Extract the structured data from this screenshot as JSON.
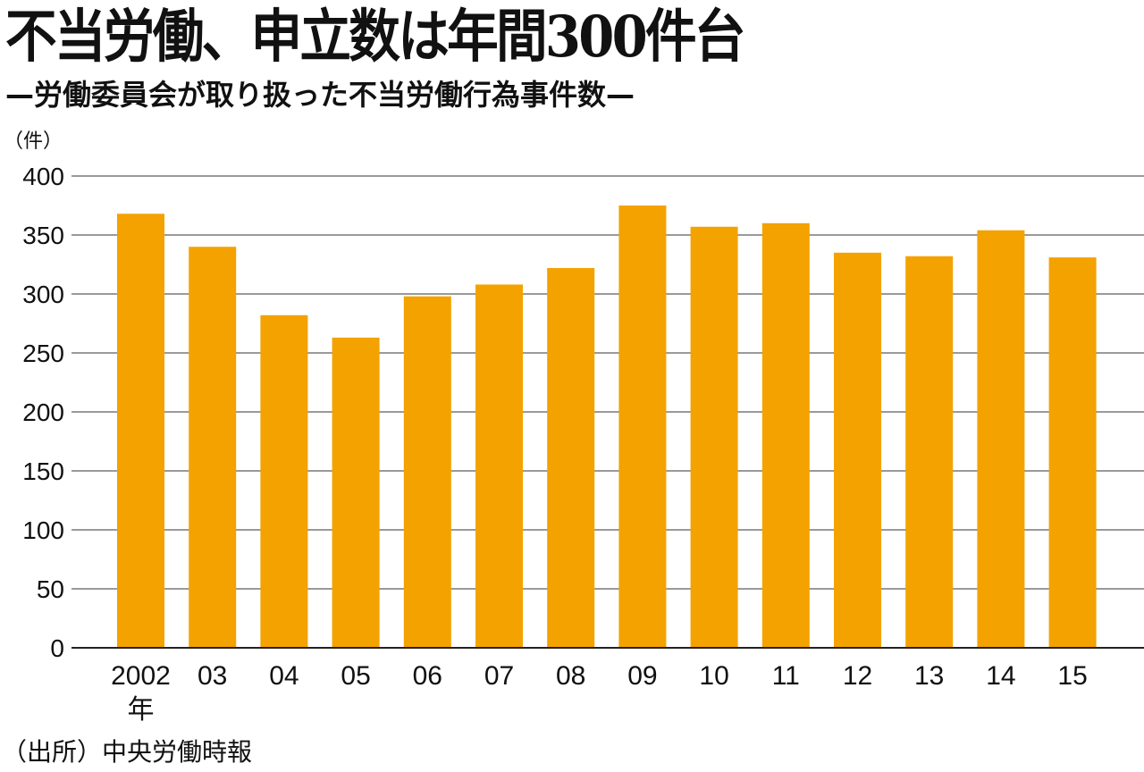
{
  "chart_data": {
    "type": "bar",
    "title": "不当労働、申立数は年間300件台",
    "subtitle": "—労働委員会が取り扱った不当労働行為事件数—",
    "ylabel": "（件）",
    "xlabel_suffix": "年",
    "categories": [
      "2002",
      "03",
      "04",
      "05",
      "06",
      "07",
      "08",
      "09",
      "10",
      "11",
      "12",
      "13",
      "14",
      "15"
    ],
    "values": [
      368,
      340,
      282,
      263,
      298,
      308,
      322,
      375,
      357,
      360,
      335,
      332,
      354,
      331
    ],
    "ylim": [
      0,
      400
    ],
    "yticks": [
      "0",
      "50",
      "100",
      "150",
      "200",
      "250",
      "300",
      "350",
      "400"
    ],
    "grid": true,
    "bar_color": "#F3A200",
    "source": "（出所）中央労働時報"
  }
}
